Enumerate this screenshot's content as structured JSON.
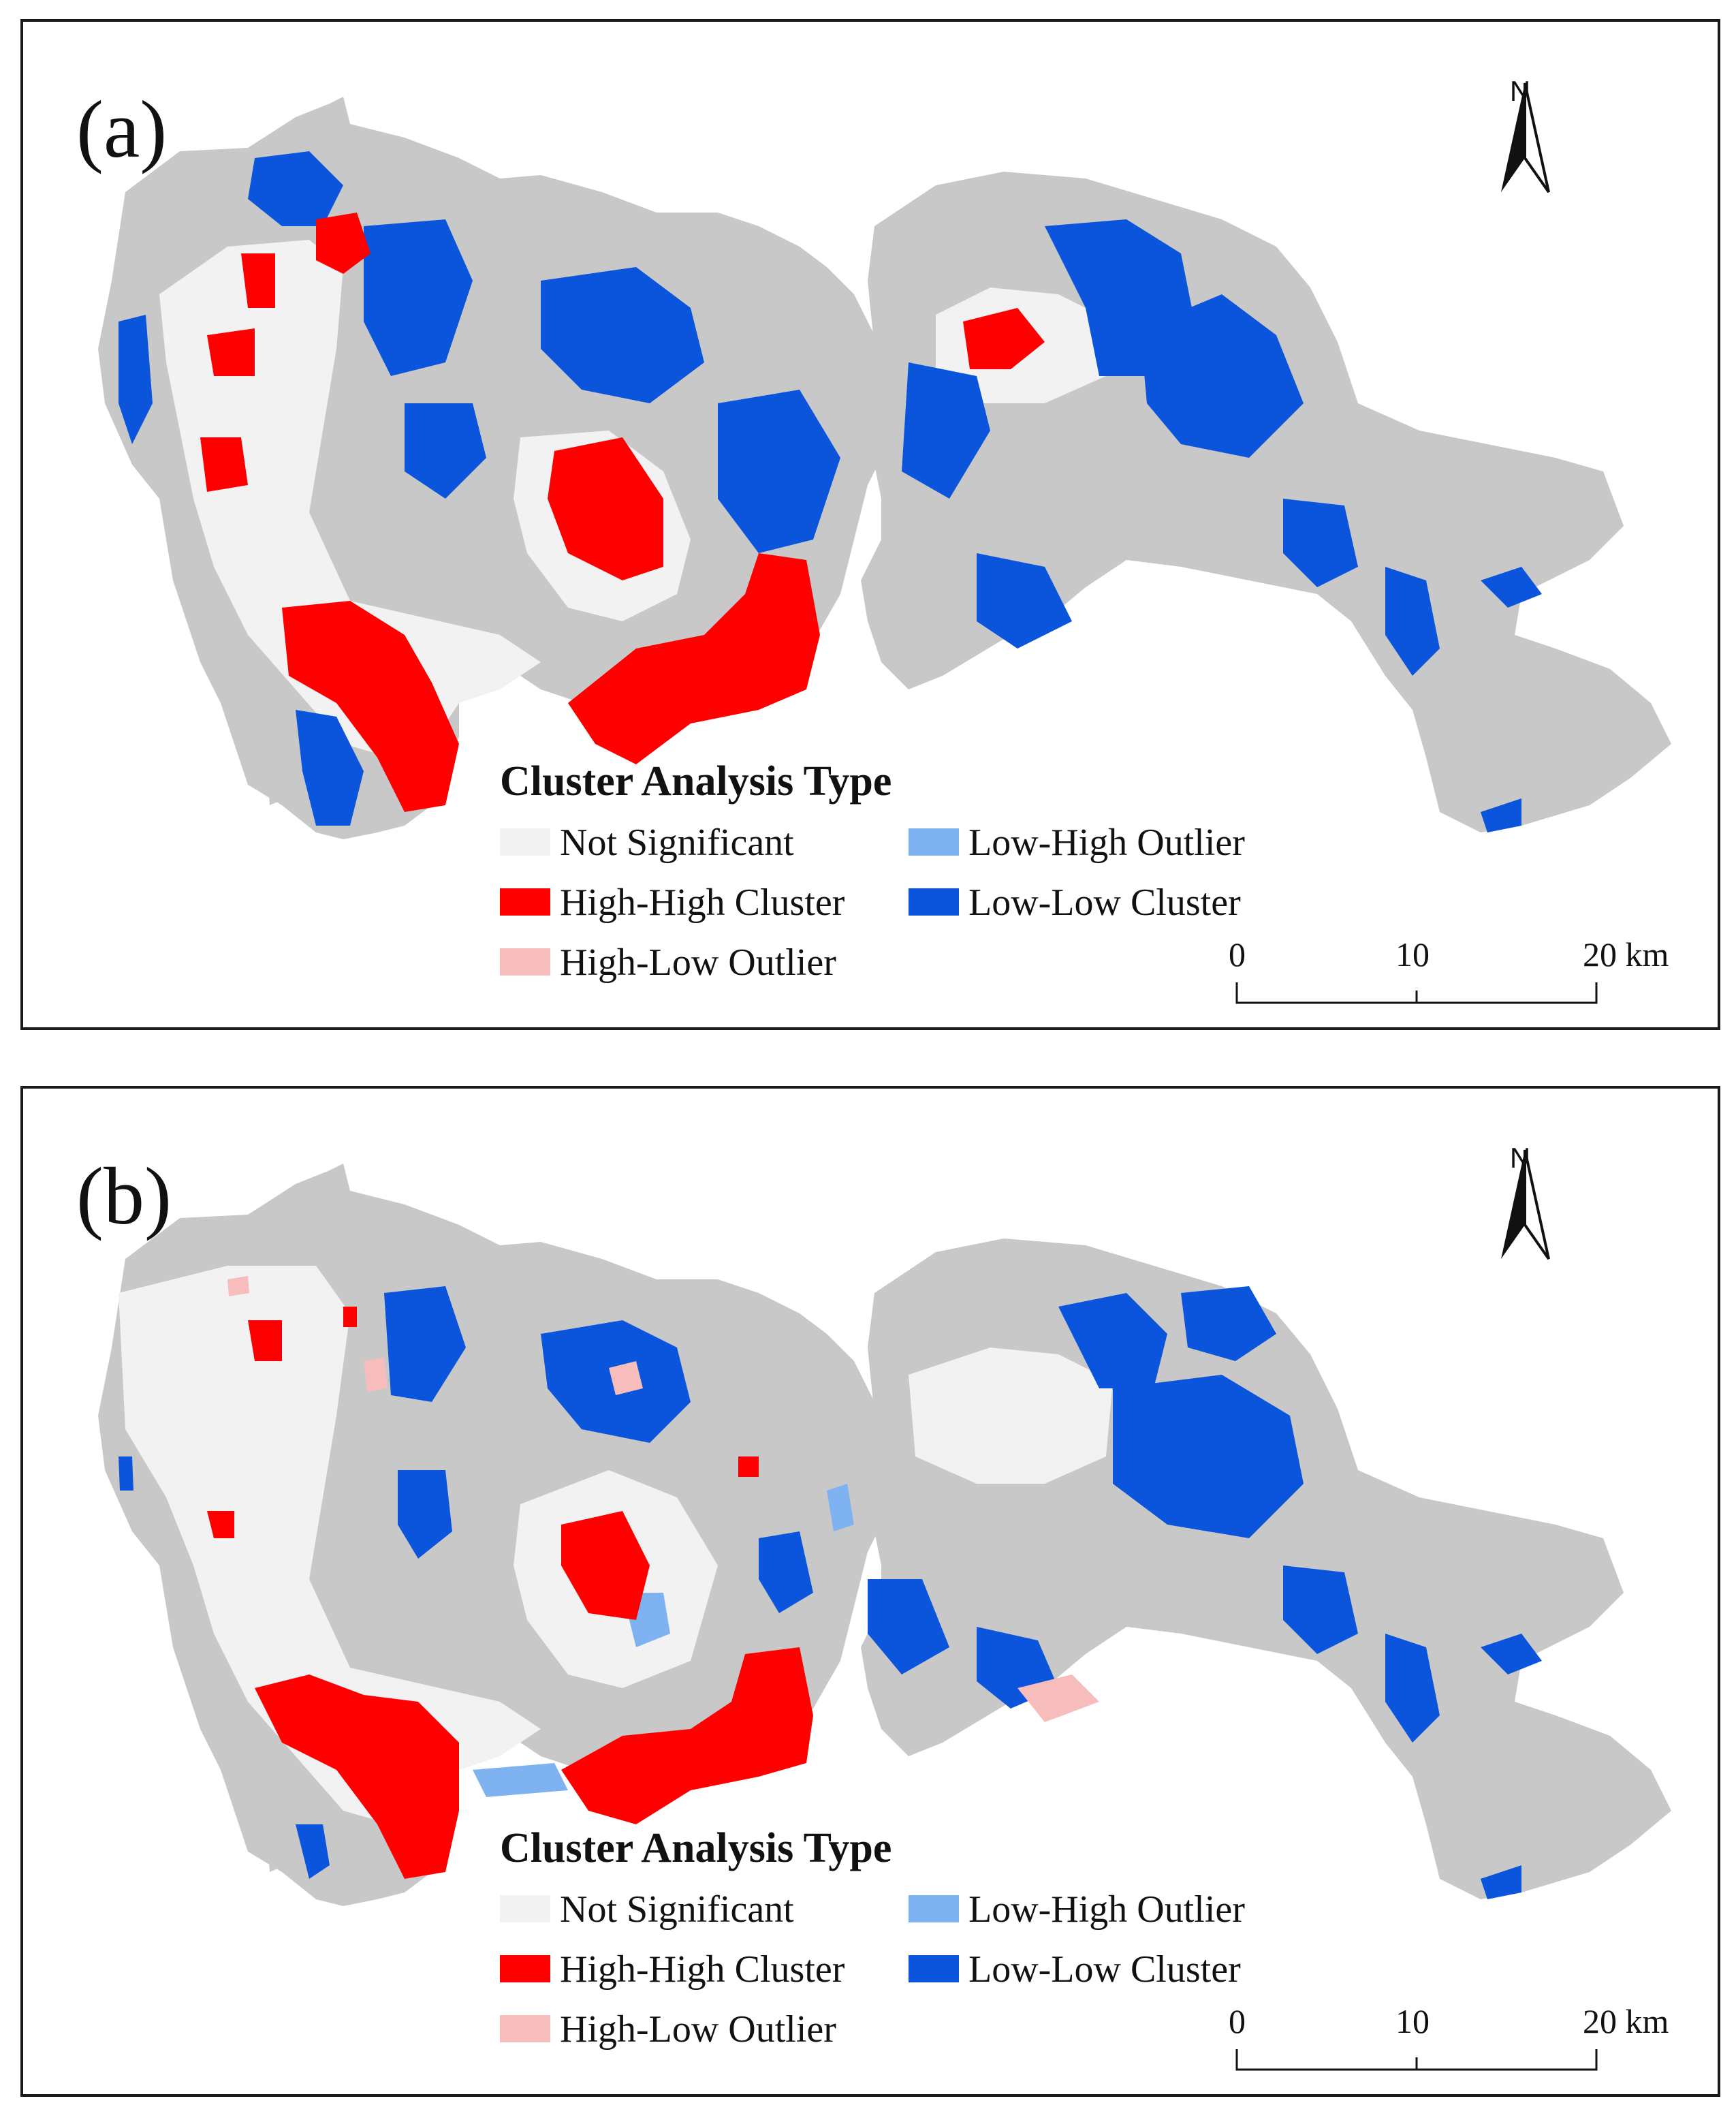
{
  "figure": {
    "panels": [
      {
        "label": "(a)",
        "north_label": "N",
        "legend": {
          "title": "Cluster Analysis Type",
          "items": [
            {
              "label": "Not Significant",
              "color": "#f2f2f2"
            },
            {
              "label": "High-High Cluster",
              "color": "#ff0000"
            },
            {
              "label": "High-Low Outlier",
              "color": "#f7bcbc"
            },
            {
              "label": "Low-High Outlier",
              "color": "#7fb2f0"
            },
            {
              "label": "Low-Low Cluster",
              "color": "#0a55dc"
            }
          ]
        },
        "scale": {
          "ticks": [
            "0",
            "10",
            "20 km"
          ]
        }
      },
      {
        "label": "(b)",
        "north_label": "N",
        "legend": {
          "title": "Cluster Analysis Type",
          "items": [
            {
              "label": "Not Significant",
              "color": "#f2f2f2"
            },
            {
              "label": "High-High Cluster",
              "color": "#ff0000"
            },
            {
              "label": "High-Low Outlier",
              "color": "#f7bcbc"
            },
            {
              "label": "Low-High Outlier",
              "color": "#7fb2f0"
            },
            {
              "label": "Low-Low Cluster",
              "color": "#0a55dc"
            }
          ]
        },
        "scale": {
          "ticks": [
            "0",
            "10",
            "20 km"
          ]
        }
      }
    ],
    "colors": {
      "land": "#c8c8c8",
      "urban": "#f2f2f2",
      "high_high": "#ff0000",
      "high_low": "#f7bcbc",
      "low_high": "#7fb2f0",
      "low_low": "#0a55dc"
    }
  }
}
